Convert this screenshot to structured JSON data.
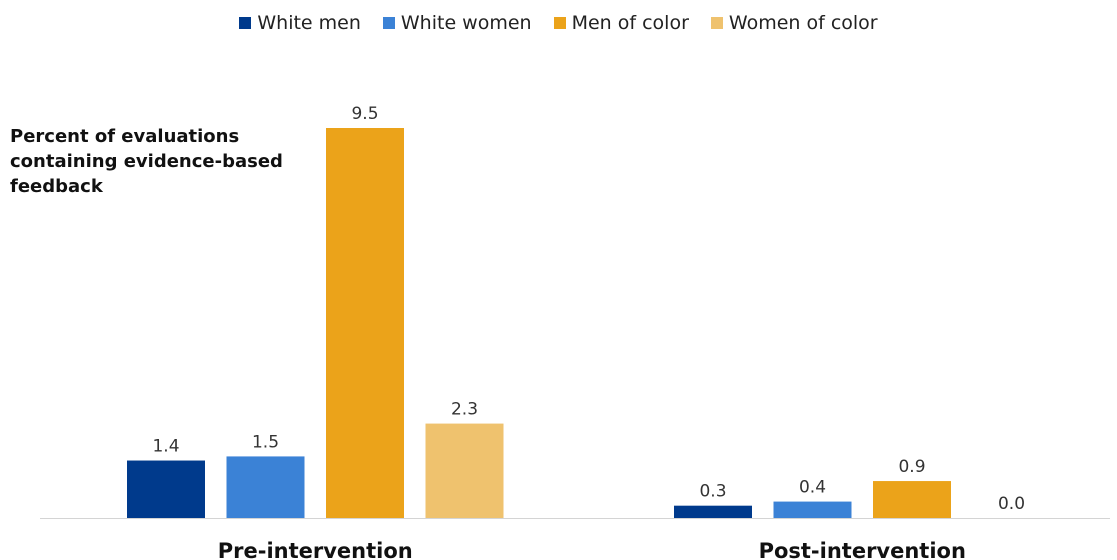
{
  "chart_data": {
    "type": "bar",
    "categories": [
      "Pre-intervention",
      "Post-intervention"
    ],
    "series": [
      {
        "name": "White men",
        "color": "#003A8C",
        "values": [
          1.4,
          0.3
        ]
      },
      {
        "name": "White women",
        "color": "#3B82D6",
        "values": [
          1.5,
          0.4
        ]
      },
      {
        "name": "Men of color",
        "color": "#EBA31A",
        "values": [
          9.5,
          0.9
        ]
      },
      {
        "name": "Women of color",
        "color": "#EFC26E",
        "values": [
          2.3,
          0.0
        ]
      }
    ],
    "ylabel": "Percent of evaluations containing evidence-based feedback",
    "ylim": [
      0,
      9.5
    ],
    "legend_position": "top-center",
    "grid": false,
    "data_labels": true,
    "value_format": "one-decimal"
  }
}
